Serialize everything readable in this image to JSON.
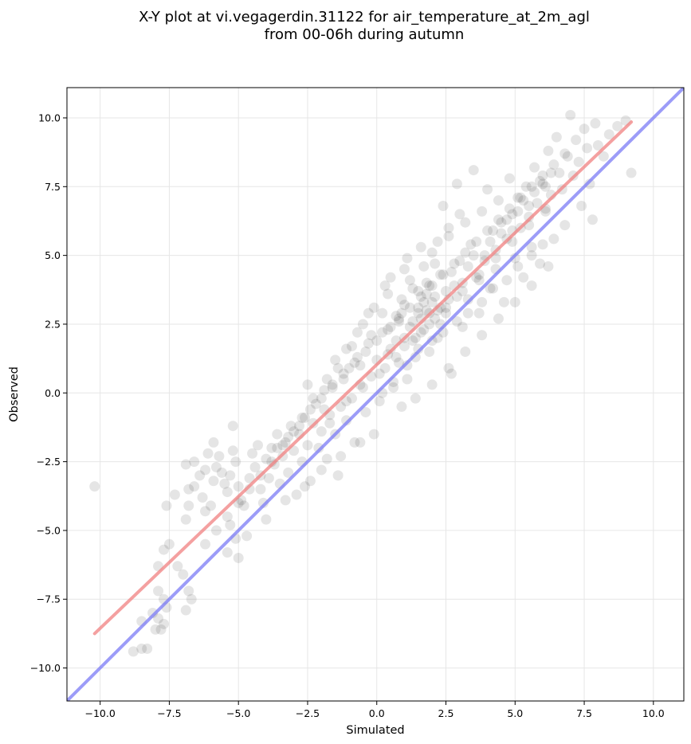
{
  "chart_data": {
    "type": "scatter",
    "title_lines": [
      "X-Y plot at vi.vegagerdin.31122 for air_temperature_at_2m_agl",
      "from 00-06h during autumn"
    ],
    "xlabel": "Simulated",
    "ylabel": "Observed",
    "xlim": [
      -11.2,
      11.1
    ],
    "ylim": [
      -11.2,
      11.1
    ],
    "xticks": [
      -10.0,
      -7.5,
      -5.0,
      -2.5,
      0.0,
      2.5,
      5.0,
      7.5,
      10.0
    ],
    "yticks": [
      -10.0,
      -7.5,
      -5.0,
      -2.5,
      0.0,
      2.5,
      5.0,
      7.5,
      10.0
    ],
    "xtick_labels": [
      "−10.0",
      "−7.5",
      "−5.0",
      "−2.5",
      "0.0",
      "2.5",
      "5.0",
      "7.5",
      "10.0"
    ],
    "ytick_labels": [
      "−10.0",
      "−7.5",
      "−5.0",
      "−2.5",
      "0.0",
      "2.5",
      "5.0",
      "7.5",
      "10.0"
    ],
    "grid": true,
    "point_color": "#000000",
    "point_alpha": 0.1,
    "fit_line": {
      "x": [
        -10.2,
        9.2
      ],
      "y": [
        -8.75,
        9.85
      ],
      "color": "#f08080"
    },
    "identity_line": {
      "x": [
        -11.2,
        11.1
      ],
      "y": [
        -11.2,
        11.1
      ],
      "color": "#7b7bf5"
    },
    "points": [
      [
        -10.2,
        -3.4
      ],
      [
        -8.8,
        -9.4
      ],
      [
        -8.5,
        -9.3
      ],
      [
        -8.3,
        -9.3
      ],
      [
        -8.5,
        -8.3
      ],
      [
        -8.0,
        -8.6
      ],
      [
        -7.9,
        -8.2
      ],
      [
        -7.8,
        -8.6
      ],
      [
        -7.7,
        -7.5
      ],
      [
        -7.6,
        -7.8
      ],
      [
        -7.9,
        -7.2
      ],
      [
        -7.7,
        -8.4
      ],
      [
        -8.1,
        -8.0
      ],
      [
        -7.9,
        -6.3
      ],
      [
        -7.7,
        -5.7
      ],
      [
        -7.5,
        -5.5
      ],
      [
        -7.6,
        -4.1
      ],
      [
        -7.3,
        -3.7
      ],
      [
        -7.2,
        -6.3
      ],
      [
        -7.0,
        -6.6
      ],
      [
        -6.9,
        -7.9
      ],
      [
        -6.8,
        -7.2
      ],
      [
        -6.7,
        -7.5
      ],
      [
        -6.8,
        -4.1
      ],
      [
        -6.9,
        -4.6
      ],
      [
        -6.8,
        -3.5
      ],
      [
        -6.6,
        -3.4
      ],
      [
        -6.9,
        -2.6
      ],
      [
        -6.6,
        -2.5
      ],
      [
        -6.4,
        -3.0
      ],
      [
        -6.2,
        -2.8
      ],
      [
        -6.1,
        -2.2
      ],
      [
        -6.3,
        -3.8
      ],
      [
        -6.2,
        -4.3
      ],
      [
        -6.0,
        -4.1
      ],
      [
        -5.9,
        -3.2
      ],
      [
        -5.8,
        -2.7
      ],
      [
        -5.7,
        -2.3
      ],
      [
        -5.9,
        -1.8
      ],
      [
        -5.6,
        -2.9
      ],
      [
        -5.5,
        -3.3
      ],
      [
        -5.4,
        -3.6
      ],
      [
        -5.3,
        -3.0
      ],
      [
        -5.2,
        -2.1
      ],
      [
        -5.1,
        -2.5
      ],
      [
        -5.2,
        -1.2
      ],
      [
        -5.0,
        -3.4
      ],
      [
        -4.9,
        -3.9
      ],
      [
        -5.3,
        -4.8
      ],
      [
        -5.1,
        -5.3
      ],
      [
        -5.0,
        -6.0
      ],
      [
        -4.8,
        -4.1
      ],
      [
        -4.6,
        -3.1
      ],
      [
        -4.5,
        -2.2
      ],
      [
        -4.4,
        -2.7
      ],
      [
        -4.3,
        -1.9
      ],
      [
        -4.2,
        -3.5
      ],
      [
        -4.1,
        -4.0
      ],
      [
        -4.0,
        -2.4
      ],
      [
        -3.9,
        -3.1
      ],
      [
        -3.8,
        -2.0
      ],
      [
        -3.7,
        -2.6
      ],
      [
        -3.6,
        -1.5
      ],
      [
        -3.5,
        -3.3
      ],
      [
        -3.4,
        -2.3
      ],
      [
        -3.3,
        -1.8
      ],
      [
        -3.2,
        -2.9
      ],
      [
        -3.1,
        -1.2
      ],
      [
        -3.0,
        -2.1
      ],
      [
        -2.9,
        -3.7
      ],
      [
        -2.8,
        -1.5
      ],
      [
        -2.7,
        -2.5
      ],
      [
        -2.6,
        -0.9
      ],
      [
        -2.5,
        -1.9
      ],
      [
        -2.4,
        -3.2
      ],
      [
        -2.3,
        -1.1
      ],
      [
        -2.2,
        -0.4
      ],
      [
        -2.1,
        -2.0
      ],
      [
        -2.0,
        -1.4
      ],
      [
        -1.9,
        -0.6
      ],
      [
        -1.8,
        -2.4
      ],
      [
        -1.7,
        -0.8
      ],
      [
        -1.6,
        0.2
      ],
      [
        -1.5,
        -1.5
      ],
      [
        -1.4,
        -3.0
      ],
      [
        -1.3,
        -0.5
      ],
      [
        -1.2,
        0.5
      ],
      [
        -1.1,
        -1.0
      ],
      [
        -1.0,
        0.9
      ],
      [
        -0.9,
        -0.2
      ],
      [
        -0.8,
        -1.8
      ],
      [
        -0.7,
        1.3
      ],
      [
        -0.6,
        0.3
      ],
      [
        -0.5,
        2.5
      ],
      [
        -0.4,
        -0.7
      ],
      [
        -0.3,
        1.8
      ],
      [
        -0.2,
        0.6
      ],
      [
        -0.1,
        3.1
      ],
      [
        0.0,
        1.2
      ],
      [
        0.1,
        -0.3
      ],
      [
        0.2,
        2.2
      ],
      [
        0.3,
        0.9
      ],
      [
        0.4,
        3.6
      ],
      [
        0.5,
        1.6
      ],
      [
        0.6,
        0.2
      ],
      [
        0.7,
        2.8
      ],
      [
        0.8,
        1.1
      ],
      [
        0.9,
        3.4
      ],
      [
        1.0,
        2.0
      ],
      [
        1.1,
        0.5
      ],
      [
        1.2,
        4.1
      ],
      [
        1.3,
        2.6
      ],
      [
        1.4,
        1.3
      ],
      [
        1.5,
        3.7
      ],
      [
        1.6,
        2.2
      ],
      [
        1.7,
        4.6
      ],
      [
        1.8,
        3.0
      ],
      [
        1.9,
        1.5
      ],
      [
        2.0,
        5.1
      ],
      [
        2.1,
        3.5
      ],
      [
        2.2,
        2.0
      ],
      [
        2.3,
        4.3
      ],
      [
        2.4,
        6.8
      ],
      [
        2.5,
        2.9
      ],
      [
        2.6,
        5.7
      ],
      [
        2.7,
        0.7
      ],
      [
        2.8,
        3.9
      ],
      [
        2.9,
        7.6
      ],
      [
        3.0,
        4.8
      ],
      [
        3.1,
        2.4
      ],
      [
        3.2,
        6.2
      ],
      [
        3.3,
        3.4
      ],
      [
        3.4,
        5.4
      ],
      [
        3.5,
        8.1
      ],
      [
        3.6,
        4.2
      ],
      [
        3.7,
        2.9
      ],
      [
        3.8,
        6.6
      ],
      [
        3.9,
        5.0
      ],
      [
        4.0,
        7.4
      ],
      [
        4.1,
        3.8
      ],
      [
        4.2,
        5.9
      ],
      [
        4.3,
        4.5
      ],
      [
        4.4,
        7.0
      ],
      [
        4.5,
        6.2
      ],
      [
        4.6,
        3.3
      ],
      [
        4.7,
        5.6
      ],
      [
        4.8,
        7.8
      ],
      [
        4.9,
        6.5
      ],
      [
        5.0,
        4.9
      ],
      [
        5.1,
        7.1
      ],
      [
        5.2,
        6.0
      ],
      [
        5.3,
        4.2
      ],
      [
        5.4,
        7.5
      ],
      [
        5.5,
        6.4
      ],
      [
        5.6,
        5.3
      ],
      [
        5.7,
        8.2
      ],
      [
        5.8,
        6.9
      ],
      [
        5.9,
        4.7
      ],
      [
        6.0,
        7.6
      ],
      [
        6.1,
        6.6
      ],
      [
        6.2,
        8.8
      ],
      [
        6.3,
        7.2
      ],
      [
        6.4,
        5.6
      ],
      [
        6.5,
        9.3
      ],
      [
        6.6,
        8.0
      ],
      [
        6.7,
        7.4
      ],
      [
        6.8,
        6.1
      ],
      [
        6.9,
        8.6
      ],
      [
        7.0,
        10.1
      ],
      [
        7.1,
        7.9
      ],
      [
        7.2,
        9.2
      ],
      [
        7.3,
        8.4
      ],
      [
        7.4,
        6.8
      ],
      [
        7.5,
        9.6
      ],
      [
        7.6,
        8.9
      ],
      [
        7.7,
        7.6
      ],
      [
        7.8,
        6.3
      ],
      [
        7.9,
        9.8
      ],
      [
        8.0,
        9.0
      ],
      [
        8.2,
        8.6
      ],
      [
        8.4,
        9.4
      ],
      [
        8.7,
        9.7
      ],
      [
        9.0,
        9.9
      ],
      [
        9.2,
        8.0
      ],
      [
        -2.5,
        0.3
      ],
      [
        -1.9,
        0.1
      ],
      [
        -1.4,
        0.9
      ],
      [
        -0.9,
        1.7
      ],
      [
        -0.6,
        1.0
      ],
      [
        -0.2,
        2.1
      ],
      [
        0.2,
        2.9
      ],
      [
        0.5,
        2.4
      ],
      [
        0.8,
        2.6
      ],
      [
        1.0,
        3.2
      ],
      [
        1.3,
        3.8
      ],
      [
        1.5,
        2.9
      ],
      [
        1.7,
        3.3
      ],
      [
        1.9,
        3.9
      ],
      [
        2.1,
        2.7
      ],
      [
        2.3,
        3.1
      ],
      [
        2.5,
        3.7
      ],
      [
        2.7,
        4.4
      ],
      [
        2.9,
        3.5
      ],
      [
        3.1,
        4.0
      ],
      [
        3.3,
        4.6
      ],
      [
        3.5,
        5.0
      ],
      [
        3.7,
        4.1
      ],
      [
        3.9,
        4.8
      ],
      [
        4.1,
        5.5
      ],
      [
        4.3,
        5.2
      ],
      [
        4.5,
        5.8
      ],
      [
        4.7,
        6.3
      ],
      [
        4.9,
        5.9
      ],
      [
        5.1,
        6.6
      ],
      [
        5.3,
        7.0
      ],
      [
        5.5,
        6.8
      ],
      [
        5.7,
        7.3
      ],
      [
        5.9,
        7.7
      ],
      [
        6.1,
        7.5
      ],
      [
        6.3,
        8.0
      ],
      [
        -3.6,
        -2.0
      ],
      [
        -3.2,
        -1.6
      ],
      [
        -2.8,
        -1.2
      ],
      [
        -2.4,
        -0.6
      ],
      [
        -2.0,
        -0.2
      ],
      [
        -1.6,
        0.3
      ],
      [
        -1.2,
        0.7
      ],
      [
        -0.8,
        1.1
      ],
      [
        -0.4,
        1.5
      ],
      [
        0.0,
        1.9
      ],
      [
        0.4,
        2.3
      ],
      [
        0.8,
        2.7
      ],
      [
        1.2,
        3.1
      ],
      [
        1.6,
        3.5
      ],
      [
        2.0,
        3.9
      ],
      [
        2.4,
        4.3
      ],
      [
        2.8,
        4.7
      ],
      [
        3.2,
        5.1
      ],
      [
        3.6,
        5.5
      ],
      [
        4.0,
        5.9
      ],
      [
        4.4,
        6.3
      ],
      [
        4.8,
        6.7
      ],
      [
        5.2,
        7.1
      ],
      [
        5.6,
        7.5
      ],
      [
        6.0,
        7.9
      ],
      [
        6.4,
        8.3
      ],
      [
        6.8,
        8.7
      ],
      [
        -1.7,
        -1.1
      ],
      [
        -1.1,
        -0.3
      ],
      [
        -0.5,
        0.2
      ],
      [
        0.1,
        0.7
      ],
      [
        0.7,
        1.3
      ],
      [
        1.3,
        1.9
      ],
      [
        1.9,
        2.5
      ],
      [
        2.5,
        3.1
      ],
      [
        3.1,
        3.7
      ],
      [
        3.7,
        4.3
      ],
      [
        4.3,
        4.9
      ],
      [
        4.9,
        5.5
      ],
      [
        5.5,
        6.1
      ],
      [
        6.1,
        6.7
      ],
      [
        0.5,
        4.2
      ],
      [
        1.1,
        4.9
      ],
      [
        1.6,
        5.3
      ],
      [
        2.2,
        5.5
      ],
      [
        2.6,
        6.0
      ],
      [
        3.0,
        6.5
      ],
      [
        1.0,
        4.5
      ],
      [
        1.8,
        4.0
      ],
      [
        2.1,
        4.7
      ],
      [
        0.3,
        3.9
      ],
      [
        -0.3,
        2.9
      ],
      [
        -0.7,
        2.2
      ],
      [
        -1.1,
        1.6
      ],
      [
        -1.5,
        1.2
      ],
      [
        -1.8,
        0.5
      ],
      [
        -2.3,
        -0.2
      ],
      [
        -2.7,
        -0.9
      ],
      [
        -3.0,
        -1.4
      ],
      [
        -3.4,
        -1.9
      ],
      [
        -3.8,
        -2.5
      ],
      [
        -4.2,
        -3.0
      ],
      [
        -4.6,
        -3.5
      ],
      [
        -5.0,
        -4.0
      ],
      [
        -5.4,
        -4.5
      ],
      [
        -5.8,
        -5.0
      ],
      [
        -6.2,
        -5.5
      ],
      [
        0.9,
        -0.5
      ],
      [
        1.4,
        -0.2
      ],
      [
        2.0,
        0.3
      ],
      [
        2.6,
        0.9
      ],
      [
        3.2,
        1.5
      ],
      [
        3.8,
        2.1
      ],
      [
        4.4,
        2.7
      ],
      [
        5.0,
        3.3
      ],
      [
        5.6,
        3.9
      ],
      [
        6.2,
        4.6
      ],
      [
        -0.1,
        -1.5
      ],
      [
        -0.6,
        -1.8
      ],
      [
        -1.3,
        -2.3
      ],
      [
        -2.0,
        -2.8
      ],
      [
        -2.6,
        -3.4
      ],
      [
        -3.3,
        -3.9
      ],
      [
        -4.0,
        -4.6
      ],
      [
        -4.7,
        -5.2
      ],
      [
        -5.4,
        -5.8
      ],
      [
        0.2,
        0.0
      ],
      [
        0.6,
        0.4
      ],
      [
        1.1,
        1.0
      ],
      [
        1.5,
        1.6
      ],
      [
        2.0,
        1.9
      ],
      [
        2.4,
        2.2
      ],
      [
        2.9,
        2.6
      ],
      [
        3.3,
        2.9
      ],
      [
        3.8,
        3.3
      ],
      [
        4.2,
        3.8
      ],
      [
        4.7,
        4.1
      ],
      [
        5.1,
        4.6
      ],
      [
        5.6,
        5.0
      ],
      [
        6.0,
        5.4
      ],
      [
        1.4,
        2.0
      ],
      [
        1.6,
        2.7
      ],
      [
        1.8,
        3.6
      ],
      [
        2.0,
        3.3
      ],
      [
        2.2,
        3.0
      ],
      [
        1.2,
        2.4
      ],
      [
        0.9,
        2.9
      ],
      [
        1.5,
        3.1
      ],
      [
        1.7,
        2.3
      ],
      [
        2.3,
        2.5
      ],
      [
        2.6,
        3.4
      ],
      [
        0.7,
        1.9
      ],
      [
        0.4,
        1.4
      ],
      [
        1.0,
        1.7
      ],
      [
        1.9,
        2.9
      ]
    ]
  }
}
